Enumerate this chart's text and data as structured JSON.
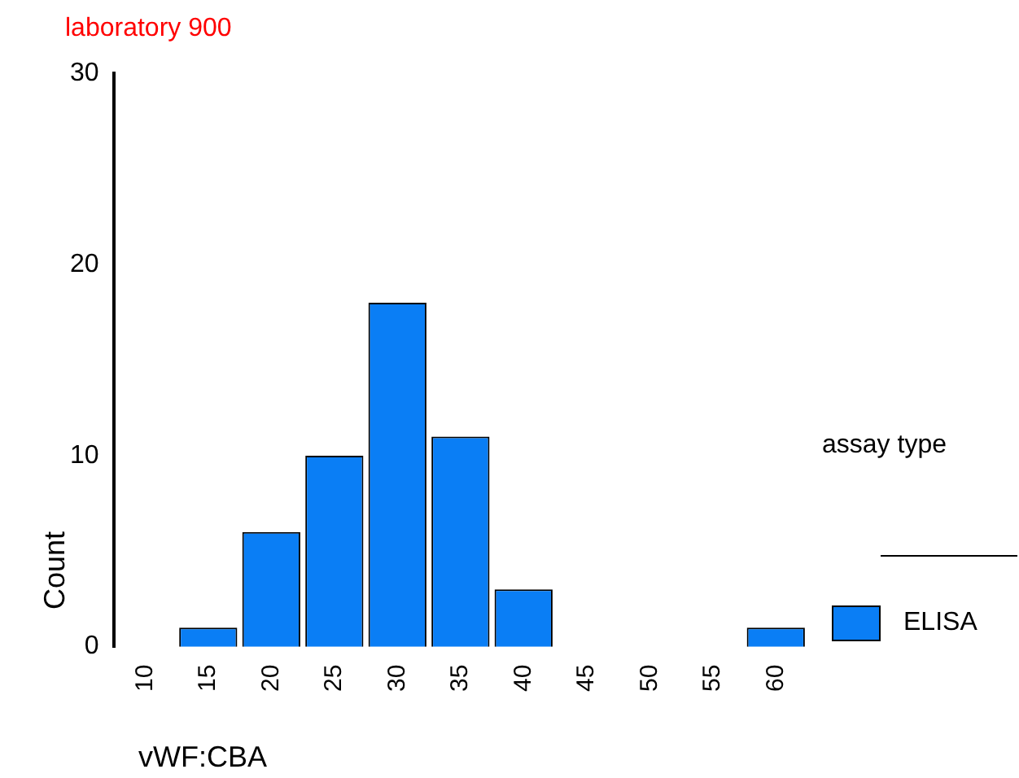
{
  "chart_data": {
    "type": "bar",
    "title": "laboratory 900",
    "xlabel": "vWF:CBA",
    "ylabel": "Count",
    "legend_title": "assay type",
    "legend": "right",
    "categories": [
      "10",
      "15",
      "20",
      "25",
      "30",
      "35",
      "40",
      "45",
      "50",
      "55",
      "60"
    ],
    "series": [
      {
        "name": "ELISA",
        "color": "#0a7ef5",
        "values": [
          0,
          1,
          6,
          10,
          18,
          11,
          3,
          0,
          0,
          0,
          1
        ]
      }
    ],
    "ylim": [
      0,
      30
    ],
    "yticks": [
      0,
      10,
      20,
      30
    ]
  }
}
